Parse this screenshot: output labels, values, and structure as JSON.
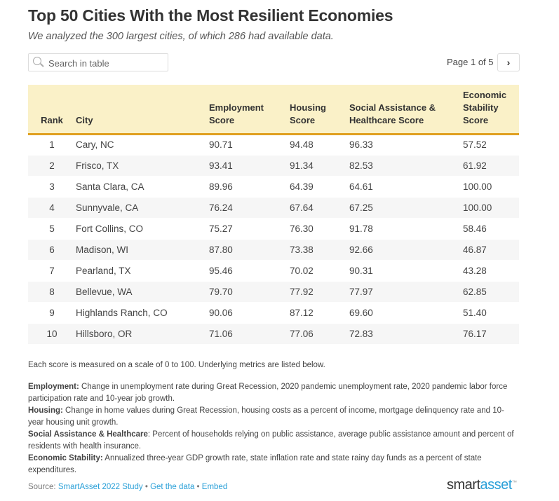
{
  "title": "Top 50 Cities With the Most Resilient Economies",
  "subtitle": "We analyzed the 300 largest cities, of which 286 had available data.",
  "search": {
    "placeholder": "Search in table",
    "icon": "search-icon"
  },
  "pagination": {
    "label": "Page 1 of 5",
    "next_icon": "›"
  },
  "table": {
    "headers": [
      "Rank",
      "City",
      "Employment Score",
      "Housing Score",
      "Social Assistance & Healthcare Score",
      "Economic Stability Score"
    ],
    "rows": [
      [
        "1",
        "Cary, NC",
        "90.71",
        "94.48",
        "96.33",
        "57.52"
      ],
      [
        "2",
        "Frisco, TX",
        "93.41",
        "91.34",
        "82.53",
        "61.92"
      ],
      [
        "3",
        "Santa Clara, CA",
        "89.96",
        "64.39",
        "64.61",
        "100.00"
      ],
      [
        "4",
        "Sunnyvale, CA",
        "76.24",
        "67.64",
        "67.25",
        "100.00"
      ],
      [
        "5",
        "Fort Collins, CO",
        "75.27",
        "76.30",
        "91.78",
        "58.46"
      ],
      [
        "6",
        "Madison, WI",
        "87.80",
        "73.38",
        "92.66",
        "46.87"
      ],
      [
        "7",
        "Pearland, TX",
        "95.46",
        "70.02",
        "90.31",
        "43.28"
      ],
      [
        "8",
        "Bellevue, WA",
        "79.70",
        "77.92",
        "77.97",
        "62.85"
      ],
      [
        "9",
        "Highlands Ranch, CO",
        "90.06",
        "87.12",
        "69.60",
        "51.40"
      ],
      [
        "10",
        "Hillsboro, OR",
        "71.06",
        "77.06",
        "72.83",
        "76.17"
      ]
    ]
  },
  "notes": {
    "intro": "Each score is measured on a scale of 0 to 100. Underlying metrics are listed below.",
    "items": [
      {
        "term": "Employment:",
        "text": " Change in unemployment rate during Great Recession, 2020 pandemic unemployment rate, 2020 pandemic labor force participation rate and 10-year job growth."
      },
      {
        "term": "Housing:",
        "text": " Change in home values during Great Recession, housing costs as a percent of income, mortgage delinquency rate and 10-year housing unit growth."
      },
      {
        "term": "Social Assistance & Healthcare",
        "text": ": Percent of households relying on public assistance, average public assistance amount and percent of residents with health insurance."
      },
      {
        "term": "Economic Stability:",
        "text": " Annualized three-year GDP growth rate, state inflation rate and state rainy day funds as a percent of state expenditures."
      }
    ]
  },
  "footer": {
    "source_label": "Source: ",
    "source_link": "SmartAsset 2022 Study",
    "sep": " • ",
    "get_data": "Get the data",
    "embed": "Embed",
    "logo_a": "smart",
    "logo_b": "asset",
    "logo_tm": "™"
  },
  "colors": {
    "header_bg": "#faf1c8",
    "header_border": "#e0a020",
    "link": "#2aa0d8"
  }
}
